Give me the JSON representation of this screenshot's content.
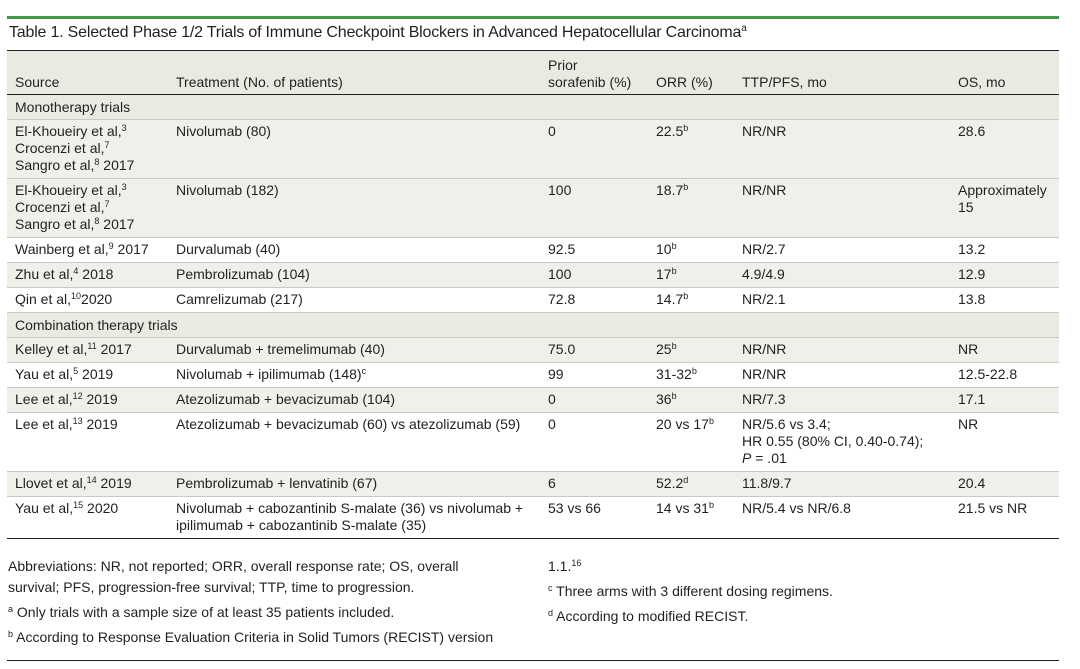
{
  "table": {
    "title": "Table 1. Selected Phase 1/2 Trials of Immune Checkpoint Blockers in Advanced Hepatocellular Carcinoma",
    "title_mark": "a",
    "headers": {
      "source": "Source",
      "treatment": "Treatment (No. of patients)",
      "prior_line1": "Prior",
      "prior_line2": "sorafenib (%)",
      "orr": "ORR (%)",
      "ttp": "TTP/PFS, mo",
      "os": "OS, mo"
    },
    "sections": {
      "monotherapy": "Monotherapy trials",
      "combination": "Combination therapy trials"
    },
    "rows": [
      {
        "s1": "El-Khoueiry et al,",
        "s1m": "3",
        "s2": "Crocenzi et al,",
        "s2m": "7",
        "s3": "Sangro et al,",
        "s3m": "8",
        "s3y": " 2017",
        "treatment": "Nivolumab (80)",
        "prior": "0",
        "orr": "22.5",
        "orr_m": "b",
        "ttp": "NR/NR",
        "os": "28.6"
      },
      {
        "s1": "El-Khoueiry et al,",
        "s1m": "3",
        "s2": "Crocenzi et al,",
        "s2m": "7",
        "s3": "Sangro et al,",
        "s3m": "8",
        "s3y": " 2017",
        "treatment": "Nivolumab (182)",
        "prior": "100",
        "orr": "18.7",
        "orr_m": "b",
        "ttp": "NR/NR",
        "os": "Approximately 15"
      },
      {
        "src": "Wainberg et al,",
        "src_m": "9",
        "src_y": " 2017",
        "treatment": "Durvalumab (40)",
        "prior": "92.5",
        "orr": "10",
        "orr_m": "b",
        "ttp": "NR/2.7",
        "os": "13.2"
      },
      {
        "src": "Zhu et al,",
        "src_m": "4",
        "src_y": " 2018",
        "treatment": "Pembrolizumab (104)",
        "prior": "100",
        "orr": "17",
        "orr_m": "b",
        "ttp": "4.9/4.9",
        "os": "12.9"
      },
      {
        "src": "Qin et al,",
        "src_m": "10",
        "src_y": "2020",
        "treatment": "Camrelizumab (217)",
        "prior": "72.8",
        "orr": "14.7",
        "orr_m": "b",
        "ttp": "NR/2.1",
        "os": "13.8"
      },
      {
        "src": "Kelley et al,",
        "src_m": "11",
        "src_y": " 2017",
        "treatment": "Durvalumab + tremelimumab (40)",
        "prior": "75.0",
        "orr": "25",
        "orr_m": "b",
        "ttp": "NR/NR",
        "os": "NR"
      },
      {
        "src": "Yau et al,",
        "src_m": "5",
        "src_y": " 2019",
        "treatment": "Nivolumab + ipilimumab (148)",
        "treatment_m": "c",
        "prior": "99",
        "orr": "31-32",
        "orr_m": "b",
        "ttp": "NR/NR",
        "os": "12.5-22.8"
      },
      {
        "src": "Lee et al,",
        "src_m": "12",
        "src_y": " 2019",
        "treatment": "Atezolizumab + bevacizumab (104)",
        "prior": "0",
        "orr": "36",
        "orr_m": "b",
        "ttp": "NR/7.3",
        "os": "17.1"
      },
      {
        "src": "Lee et al,",
        "src_m": "13",
        "src_y": " 2019",
        "treatment": "Atezolizumab + bevacizumab (60) vs atezolizumab (59)",
        "prior": "0",
        "orr": "20 vs 17",
        "orr_m": "b",
        "ttp_l1": "NR/5.6 vs 3.4;",
        "ttp_l2": "HR 0.55 (80% CI, 0.40-0.74);",
        "ttp_l3p": "P",
        "ttp_l3": " = .01",
        "os": "NR"
      },
      {
        "src": "Llovet et al,",
        "src_m": "14",
        "src_y": " 2019",
        "treatment": "Pembrolizumab + lenvatinib (67)",
        "prior": "6",
        "orr": "52.2",
        "orr_m": "d",
        "ttp": "11.8/9.7",
        "os": "20.4"
      },
      {
        "src": "Yau et al,",
        "src_m": "15",
        "src_y": " 2020",
        "treatment": "Nivolumab + cabozantinib S-malate (36) vs nivolumab + ipilimumab + cabozantinib S-malate (35)",
        "prior": "53 vs 66",
        "orr": "14 vs 31",
        "orr_m": "b",
        "ttp": "NR/5.4 vs NR/6.8",
        "os": "21.5 vs NR"
      }
    ]
  },
  "footnotes": {
    "abbreviations": "Abbreviations: NR, not reported; ORR, overall response rate; OS, overall survival; PFS, progression-free survival; TTP, time to progression.",
    "a_mark": "a",
    "a": "Only trials with a sample size of at least 35 patients included.",
    "b_mark": "b",
    "b": "According to Response Evaluation Criteria in Solid Tumors (RECIST) version",
    "b_cont": "1.1.",
    "b_cont_m": "16",
    "c_mark": "c",
    "c": "Three arms with 3 different dosing regimens.",
    "d_mark": "d",
    "d": "According to modified RECIST."
  }
}
